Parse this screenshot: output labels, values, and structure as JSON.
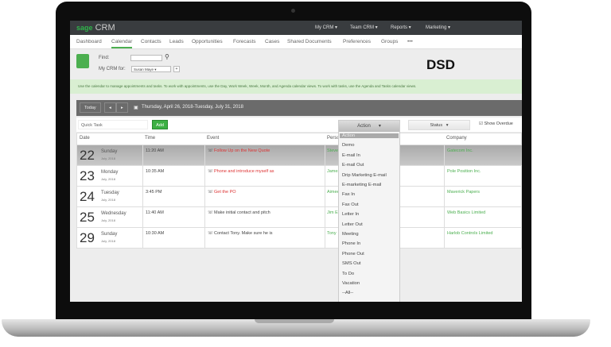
{
  "app": {
    "logo_brand": "sage",
    "logo_product": "CRM",
    "top_menu": [
      "My CRM ▾",
      "Team CRM ▾",
      "Reports ▾",
      "Marketing ▾"
    ]
  },
  "nav": {
    "tabs": [
      "Dashboard",
      "Calendar",
      "Contacts",
      "Leads",
      "Opportunities",
      "Forecasts",
      "Cases",
      "Shared Documents",
      "Preferences",
      "Groups",
      "•••"
    ],
    "active": "Calendar"
  },
  "header": {
    "find_label": "Find:",
    "find_value": "",
    "mycrm_label": "My CRM for:",
    "mycrm_value": "Susan Maye",
    "company_logo": "DSD"
  },
  "info": "Use the calendar to manage appointments and tasks. To work with appointments, use the Day, Work Week, Week, Month, and Agenda calendar views. To work with tasks, use the Agenda and Tasks calendar views.",
  "toolbar": {
    "today": "Today",
    "prev": "◂",
    "next": "▸",
    "date_range": "Thursday, April 26, 2018-Tuesday, July 31, 2018"
  },
  "quick": {
    "placeholder": "Quick Task",
    "add": "Add",
    "action": "Action",
    "status": "Status",
    "show_overdue": "Show Overdue"
  },
  "table": {
    "headers": [
      "Date",
      "Time",
      "Event",
      "Person",
      "Company"
    ],
    "rows": [
      {
        "day": "22",
        "weekday": "Sunday",
        "month": "July, 2018",
        "time": "11:20 AM",
        "event": "Follow Up on the New Quote",
        "person": "Steve",
        "company": "Gatecom Inc."
      },
      {
        "day": "23",
        "weekday": "Monday",
        "month": "July, 2018",
        "time": "10:35 AM",
        "event": "Phone and introduce myself as",
        "person": "James",
        "company": "Pole Position Inc."
      },
      {
        "day": "24",
        "weekday": "Tuesday",
        "month": "July, 2018",
        "time": "3:45 PM",
        "event": "Get the PO",
        "person": "Aimee",
        "company": "Maverick Papers"
      },
      {
        "day": "25",
        "weekday": "Wednesday",
        "month": "July, 2018",
        "time": "11:40 AM",
        "event": "Make initial contact and pitch",
        "person": "Jim E",
        "company": "Web Basics Limited"
      },
      {
        "day": "29",
        "weekday": "Sunday",
        "month": "July, 2018",
        "time": "10:30 AM",
        "event": "Contact Tony. Make sure he is",
        "person": "Tony",
        "company": "Harlob Controls Limited"
      }
    ]
  },
  "action_options": [
    "Action",
    "Demo",
    "E-mail In",
    "E-mail Out",
    "Drip Marketing E-mail",
    "E-marketing E-mail",
    "Fax In",
    "Fax Out",
    "Letter In",
    "Letter Out",
    "Meeting",
    "Phone In",
    "Phone Out",
    "SMS Out",
    "To Do",
    "Vacation",
    "--All--"
  ],
  "colors": {
    "accent": "#4caf50",
    "topbar": "#393c3f",
    "overdue": "#d33333"
  }
}
